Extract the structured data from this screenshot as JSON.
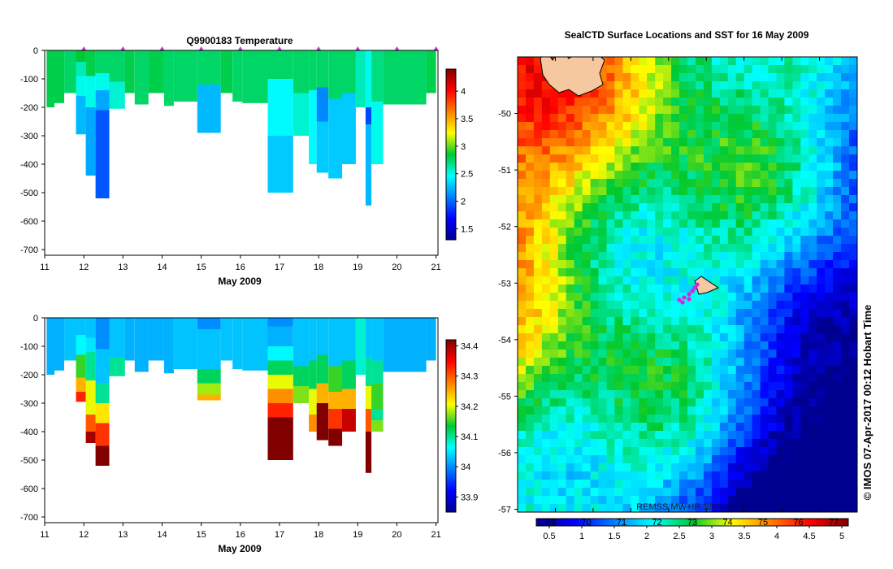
{
  "chart_data": [
    {
      "type": "heatmap",
      "title": "Q9900183  Temperature",
      "xlabel": "May 2009",
      "x_ticks": [
        "11",
        "12",
        "13",
        "14",
        "15",
        "16",
        "17",
        "18",
        "19",
        "20",
        "21"
      ],
      "y_ticks": [
        "0",
        "-100",
        "-200",
        "-300",
        "-400",
        "-500",
        "-600",
        "-700"
      ],
      "xlim": [
        11,
        21.05
      ],
      "ylim": [
        -720,
        0
      ],
      "colorbar": {
        "ticks": [
          "1.5",
          "2",
          "2.5",
          "3",
          "3.5",
          "4"
        ],
        "range": [
          1.3,
          4.4
        ]
      },
      "profiles": [
        {
          "t0": 11.05,
          "t1": 11.25,
          "depth": 200,
          "layers": [
            [
              0,
              200,
              2.8
            ]
          ]
        },
        {
          "t0": 11.25,
          "t1": 11.5,
          "depth": 185,
          "layers": [
            [
              0,
              185,
              2.8
            ]
          ]
        },
        {
          "t0": 11.5,
          "t1": 11.8,
          "depth": 150,
          "layers": [
            [
              0,
              150,
              2.75
            ]
          ]
        },
        {
          "t0": 11.8,
          "t1": 12.05,
          "depth": 295,
          "layers": [
            [
              0,
              40,
              2.85
            ],
            [
              40,
              90,
              2.6
            ],
            [
              90,
              160,
              2.5
            ],
            [
              160,
              295,
              2.25
            ]
          ]
        },
        {
          "t0": 12.05,
          "t1": 12.3,
          "depth": 440,
          "layers": [
            [
              0,
              90,
              2.8
            ],
            [
              90,
              200,
              2.5
            ],
            [
              200,
              440,
              2.2
            ]
          ]
        },
        {
          "t0": 12.3,
          "t1": 12.65,
          "depth": 520,
          "layers": [
            [
              0,
              80,
              2.75
            ],
            [
              80,
              140,
              2.5
            ],
            [
              140,
              210,
              2.2
            ],
            [
              210,
              520,
              1.95
            ]
          ]
        },
        {
          "t0": 12.65,
          "t1": 13.05,
          "depth": 205,
          "layers": [
            [
              0,
              110,
              2.75
            ],
            [
              110,
              205,
              2.55
            ]
          ]
        },
        {
          "t0": 13.05,
          "t1": 13.3,
          "depth": 150,
          "layers": [
            [
              0,
              150,
              2.8
            ]
          ]
        },
        {
          "t0": 13.3,
          "t1": 13.65,
          "depth": 190,
          "layers": [
            [
              0,
              190,
              2.75
            ]
          ]
        },
        {
          "t0": 13.65,
          "t1": 14.05,
          "depth": 150,
          "layers": [
            [
              0,
              150,
              2.8
            ]
          ]
        },
        {
          "t0": 14.05,
          "t1": 14.3,
          "depth": 195,
          "layers": [
            [
              0,
              195,
              2.75
            ]
          ]
        },
        {
          "t0": 14.3,
          "t1": 14.9,
          "depth": 180,
          "layers": [
            [
              0,
              180,
              2.75
            ]
          ]
        },
        {
          "t0": 14.9,
          "t1": 15.5,
          "depth": 290,
          "layers": [
            [
              0,
              120,
              2.75
            ],
            [
              120,
              290,
              2.25
            ]
          ]
        },
        {
          "t0": 15.5,
          "t1": 15.8,
          "depth": 150,
          "layers": [
            [
              0,
              150,
              2.8
            ]
          ]
        },
        {
          "t0": 15.8,
          "t1": 16.05,
          "depth": 180,
          "layers": [
            [
              0,
              180,
              2.75
            ]
          ]
        },
        {
          "t0": 16.05,
          "t1": 16.7,
          "depth": 185,
          "layers": [
            [
              0,
              185,
              2.75
            ]
          ]
        },
        {
          "t0": 16.7,
          "t1": 17.35,
          "depth": 500,
          "layers": [
            [
              0,
              100,
              2.75
            ],
            [
              100,
              300,
              2.45
            ],
            [
              300,
              500,
              2.3
            ]
          ]
        },
        {
          "t0": 17.35,
          "t1": 17.75,
          "depth": 300,
          "layers": [
            [
              0,
              150,
              2.75
            ],
            [
              150,
              300,
              2.55
            ]
          ]
        },
        {
          "t0": 17.75,
          "t1": 17.95,
          "depth": 400,
          "layers": [
            [
              0,
              140,
              2.75
            ],
            [
              140,
              400,
              2.45
            ]
          ]
        },
        {
          "t0": 17.95,
          "t1": 18.25,
          "depth": 430,
          "layers": [
            [
              0,
              130,
              2.75
            ],
            [
              130,
              250,
              2.1
            ],
            [
              250,
              430,
              2.3
            ]
          ]
        },
        {
          "t0": 18.25,
          "t1": 18.6,
          "depth": 450,
          "layers": [
            [
              0,
              170,
              2.75
            ],
            [
              170,
              450,
              2.3
            ]
          ]
        },
        {
          "t0": 18.6,
          "t1": 18.95,
          "depth": 400,
          "layers": [
            [
              0,
              150,
              2.75
            ],
            [
              150,
              400,
              2.3
            ]
          ]
        },
        {
          "t0": 18.95,
          "t1": 19.2,
          "depth": 200,
          "layers": [
            [
              0,
              200,
              2.6
            ]
          ]
        },
        {
          "t0": 19.2,
          "t1": 19.35,
          "depth": 545,
          "layers": [
            [
              0,
              200,
              2.5
            ],
            [
              200,
              260,
              1.9
            ],
            [
              260,
              545,
              2.25
            ]
          ]
        },
        {
          "t0": 19.35,
          "t1": 19.65,
          "depth": 400,
          "layers": [
            [
              0,
              180,
              2.7
            ],
            [
              180,
              400,
              2.5
            ]
          ]
        },
        {
          "t0": 19.65,
          "t1": 20.75,
          "depth": 190,
          "layers": [
            [
              0,
              190,
              2.75
            ]
          ]
        },
        {
          "t0": 20.75,
          "t1": 21.0,
          "depth": 150,
          "layers": [
            [
              0,
              150,
              2.8
            ]
          ]
        }
      ],
      "surface_markers": [
        12.0,
        13.0,
        14.0,
        15.0,
        16.0,
        17.0,
        18.0,
        19.0,
        20.0,
        21.0
      ]
    },
    {
      "type": "heatmap",
      "title": "",
      "xlabel": "May 2009",
      "x_ticks": [
        "11",
        "12",
        "13",
        "14",
        "15",
        "16",
        "17",
        "18",
        "19",
        "20",
        "21"
      ],
      "y_ticks": [
        "0",
        "-100",
        "-200",
        "-300",
        "-400",
        "-500",
        "-600",
        "-700"
      ],
      "xlim": [
        11,
        21.05
      ],
      "ylim": [
        -720,
        0
      ],
      "colorbar": {
        "ticks": [
          "33.9",
          "34",
          "34.1",
          "34.2",
          "34.3",
          "34.4"
        ],
        "range": [
          33.85,
          34.42
        ]
      },
      "profiles": [
        {
          "t0": 11.05,
          "t1": 11.25,
          "depth": 200,
          "layers": [
            [
              0,
              200,
              34.02
            ]
          ]
        },
        {
          "t0": 11.25,
          "t1": 11.5,
          "depth": 185,
          "layers": [
            [
              0,
              185,
              34.02
            ]
          ]
        },
        {
          "t0": 11.5,
          "t1": 11.8,
          "depth": 150,
          "layers": [
            [
              0,
              150,
              34.03
            ]
          ]
        },
        {
          "t0": 11.8,
          "t1": 12.05,
          "depth": 295,
          "layers": [
            [
              0,
              60,
              34.03
            ],
            [
              60,
              130,
              34.06
            ],
            [
              130,
              210,
              34.15
            ],
            [
              210,
              260,
              34.25
            ],
            [
              260,
              295,
              34.33
            ]
          ]
        },
        {
          "t0": 12.05,
          "t1": 12.3,
          "depth": 440,
          "layers": [
            [
              0,
              70,
              34.03
            ],
            [
              70,
              120,
              34.05
            ],
            [
              120,
              220,
              34.1
            ],
            [
              220,
              340,
              34.2
            ],
            [
              340,
              400,
              34.3
            ],
            [
              400,
              440,
              34.4
            ]
          ]
        },
        {
          "t0": 12.3,
          "t1": 12.65,
          "depth": 520,
          "layers": [
            [
              0,
              110,
              34.0
            ],
            [
              110,
              230,
              34.03
            ],
            [
              230,
              300,
              34.1
            ],
            [
              300,
              370,
              34.22
            ],
            [
              370,
              450,
              34.32
            ],
            [
              450,
              520,
              34.42
            ]
          ]
        },
        {
          "t0": 12.65,
          "t1": 13.05,
          "depth": 205,
          "layers": [
            [
              0,
              140,
              34.03
            ],
            [
              140,
              205,
              34.1
            ]
          ]
        },
        {
          "t0": 13.05,
          "t1": 13.3,
          "depth": 150,
          "layers": [
            [
              0,
              150,
              34.02
            ]
          ]
        },
        {
          "t0": 13.3,
          "t1": 13.65,
          "depth": 190,
          "layers": [
            [
              0,
              190,
              34.02
            ]
          ]
        },
        {
          "t0": 13.65,
          "t1": 14.05,
          "depth": 150,
          "layers": [
            [
              0,
              150,
              34.02
            ]
          ]
        },
        {
          "t0": 14.05,
          "t1": 14.3,
          "depth": 195,
          "layers": [
            [
              0,
              195,
              34.02
            ]
          ]
        },
        {
          "t0": 14.3,
          "t1": 14.9,
          "depth": 180,
          "layers": [
            [
              0,
              180,
              34.03
            ]
          ]
        },
        {
          "t0": 14.9,
          "t1": 15.5,
          "depth": 290,
          "layers": [
            [
              0,
              40,
              34.0
            ],
            [
              40,
              180,
              34.03
            ],
            [
              180,
              230,
              34.12
            ],
            [
              230,
              270,
              34.18
            ],
            [
              270,
              290,
              34.25
            ]
          ]
        },
        {
          "t0": 15.5,
          "t1": 15.8,
          "depth": 150,
          "layers": [
            [
              0,
              150,
              34.03
            ]
          ]
        },
        {
          "t0": 15.8,
          "t1": 16.05,
          "depth": 180,
          "layers": [
            [
              0,
              180,
              34.03
            ]
          ]
        },
        {
          "t0": 16.05,
          "t1": 16.7,
          "depth": 185,
          "layers": [
            [
              0,
              185,
              34.03
            ]
          ]
        },
        {
          "t0": 16.7,
          "t1": 17.35,
          "depth": 500,
          "layers": [
            [
              0,
              30,
              34.0
            ],
            [
              30,
              100,
              34.02
            ],
            [
              100,
              150,
              34.06
            ],
            [
              150,
              200,
              34.12
            ],
            [
              200,
              250,
              34.2
            ],
            [
              250,
              300,
              34.27
            ],
            [
              300,
              350,
              34.33
            ],
            [
              350,
              500,
              34.42
            ]
          ]
        },
        {
          "t0": 17.35,
          "t1": 17.75,
          "depth": 300,
          "layers": [
            [
              0,
              170,
              34.03
            ],
            [
              170,
              240,
              34.12
            ],
            [
              240,
              300,
              34.17
            ]
          ]
        },
        {
          "t0": 17.75,
          "t1": 17.95,
          "depth": 400,
          "layers": [
            [
              0,
              150,
              34.03
            ],
            [
              150,
              250,
              34.12
            ],
            [
              250,
              340,
              34.2
            ],
            [
              340,
              400,
              34.27
            ]
          ]
        },
        {
          "t0": 17.95,
          "t1": 18.25,
          "depth": 430,
          "layers": [
            [
              0,
              130,
              34.03
            ],
            [
              130,
              230,
              34.12
            ],
            [
              230,
              300,
              34.25
            ],
            [
              300,
              430,
              34.42
            ]
          ]
        },
        {
          "t0": 18.25,
          "t1": 18.6,
          "depth": 450,
          "layers": [
            [
              0,
              170,
              34.03
            ],
            [
              170,
              260,
              34.15
            ],
            [
              260,
              320,
              34.25
            ],
            [
              320,
              390,
              34.32
            ],
            [
              390,
              450,
              34.42
            ]
          ]
        },
        {
          "t0": 18.6,
          "t1": 18.95,
          "depth": 400,
          "layers": [
            [
              0,
              150,
              34.03
            ],
            [
              150,
              250,
              34.12
            ],
            [
              250,
              320,
              34.25
            ],
            [
              320,
              400,
              34.38
            ]
          ]
        },
        {
          "t0": 18.95,
          "t1": 19.2,
          "depth": 200,
          "layers": [
            [
              0,
              200,
              34.08
            ]
          ]
        },
        {
          "t0": 19.2,
          "t1": 19.35,
          "depth": 545,
          "layers": [
            [
              0,
              140,
              34.03
            ],
            [
              140,
              240,
              34.1
            ],
            [
              240,
              320,
              34.2
            ],
            [
              320,
              400,
              34.3
            ],
            [
              400,
              545,
              34.42
            ]
          ]
        },
        {
          "t0": 19.35,
          "t1": 19.65,
          "depth": 400,
          "layers": [
            [
              0,
              150,
              34.03
            ],
            [
              150,
              230,
              34.1
            ],
            [
              230,
              320,
              34.15
            ],
            [
              320,
              360,
              34.1
            ],
            [
              360,
              400,
              34.17
            ]
          ]
        },
        {
          "t0": 19.65,
          "t1": 20.75,
          "depth": 190,
          "layers": [
            [
              0,
              190,
              34.02
            ]
          ]
        },
        {
          "t0": 20.75,
          "t1": 21.0,
          "depth": 150,
          "layers": [
            [
              0,
              150,
              34.02
            ]
          ]
        }
      ]
    },
    {
      "type": "heatmap",
      "title": "SealCTD Surface Locations and SST for 16 May 2009",
      "y_ticks": [
        "-50",
        "-51",
        "-52",
        "-53",
        "-54",
        "-55",
        "-56",
        "-57"
      ],
      "ylim": [
        -57.05,
        -49.0
      ],
      "colorbar": {
        "top_ticks": [
          "69",
          "70",
          "71",
          "72",
          "73",
          "74",
          "75",
          "76",
          "77"
        ],
        "bottom_ticks": [
          "0.5",
          "1",
          "1.5",
          "2",
          "2.5",
          "3",
          "3.5",
          "4",
          "4.5",
          "5"
        ],
        "range": [
          0.3,
          5.1
        ]
      },
      "source_label": "REMSS MW+IR SST",
      "credit": "© IMOS 07-Apr-2017 00:12 Hobart Time",
      "land_color": "#f5c8a0",
      "marker_color": "#e020e0"
    }
  ]
}
